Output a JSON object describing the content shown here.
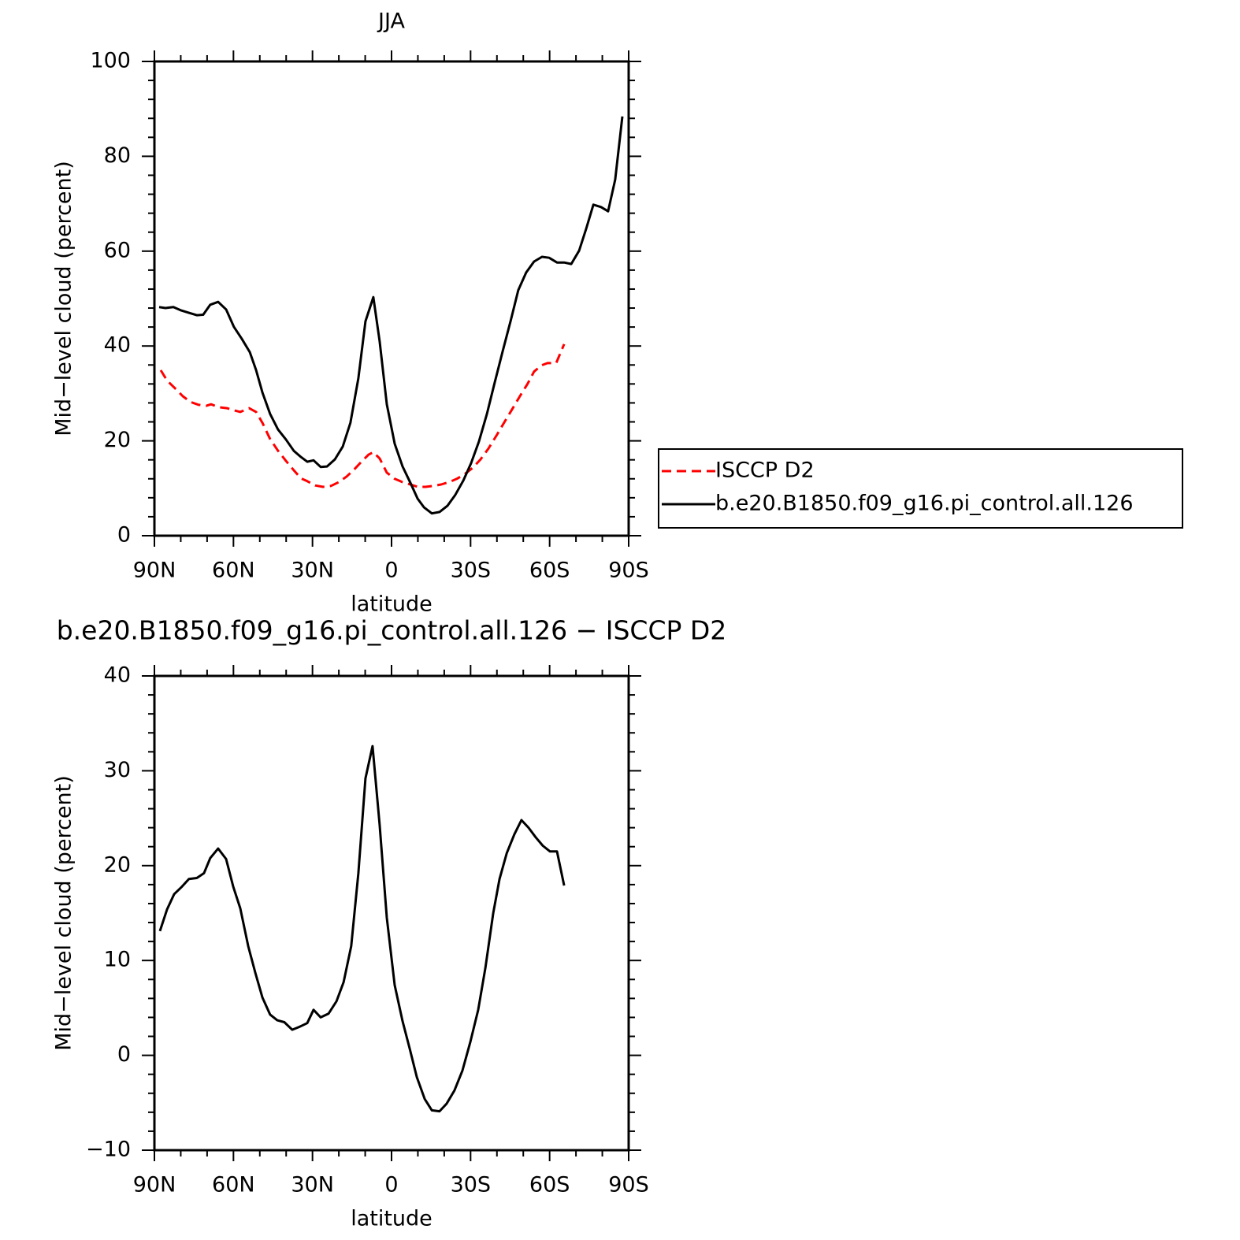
{
  "chart_data": [
    {
      "type": "line",
      "title": "JJA",
      "xlabel": "latitude",
      "ylabel": "Mid−level cloud (percent)",
      "xlim": [
        90,
        -90
      ],
      "ylim": [
        0,
        100
      ],
      "xticks": [
        {
          "value": 90,
          "label": "90N"
        },
        {
          "value": 60,
          "label": "60N"
        },
        {
          "value": 30,
          "label": "30N"
        },
        0,
        {
          "value": -30,
          "label": "30S"
        },
        {
          "value": -60,
          "label": "60S"
        },
        {
          "value": -90,
          "label": "90S"
        }
      ],
      "xminorticks": [
        80,
        70,
        50,
        40,
        20,
        10,
        -10,
        -20,
        -40,
        -50,
        -70,
        -80
      ],
      "yticks": [
        0,
        20,
        40,
        60,
        80,
        100
      ],
      "yminorticks": [
        4,
        8,
        12,
        16,
        24,
        28,
        32,
        36,
        44,
        48,
        52,
        56,
        64,
        68,
        72,
        76,
        84,
        88,
        92,
        96
      ],
      "legend": "right",
      "series": [
        {
          "name": "ISCCP D2",
          "color": "#ff0000",
          "dashed": true,
          "x": [
            87.6,
            85.2,
            82.2,
            79.2,
            76.3,
            73.3,
            70.3,
            68.5,
            65.5,
            62.5,
            59.5,
            57.4,
            54.1,
            51.4,
            49.0,
            46.1,
            43.1,
            40.1,
            37.1,
            34.4,
            32.0,
            29.0,
            26.0,
            23.0,
            20.0,
            17.0,
            14.1,
            11.1,
            8.7,
            6.9,
            4.5,
            1.8,
            -1.2,
            -4.2,
            -7.2,
            -9.9,
            -12.9,
            -15.8,
            -18.8,
            -21.8,
            -24.8,
            -27.8,
            -30.8,
            -33.8,
            -36.8,
            -39.8,
            -42.8,
            -45.8,
            -48.7,
            -51.7,
            -54.1,
            -56.8,
            -59.2,
            -62.5,
            -65.5
          ],
          "values": [
            34.9,
            32.7,
            31.1,
            29.4,
            28.2,
            27.6,
            27.4,
            27.7,
            27.1,
            26.9,
            26.4,
            26.1,
            26.9,
            26.1,
            23.8,
            20.4,
            17.9,
            15.8,
            13.8,
            12.1,
            11.5,
            10.6,
            10.3,
            10.5,
            11.3,
            12.5,
            14.0,
            15.8,
            17.1,
            17.6,
            16.3,
            13.3,
            12.0,
            11.3,
            10.8,
            10.3,
            10.3,
            10.5,
            10.8,
            11.3,
            12.0,
            13.0,
            14.3,
            16.1,
            18.4,
            21.1,
            23.9,
            26.7,
            29.4,
            32.1,
            34.6,
            35.9,
            36.4,
            36.4,
            40.4
          ]
        },
        {
          "name": "b.e20.B1850.f09_g16.pi_control.all.126",
          "color": "#000000",
          "dashed": false,
          "x": [
            88.2,
            85.8,
            82.8,
            79.8,
            76.9,
            73.9,
            71.5,
            68.8,
            65.8,
            62.8,
            59.8,
            56.8,
            53.8,
            51.4,
            49.0,
            46.1,
            43.1,
            40.1,
            37.1,
            34.4,
            32.0,
            29.6,
            26.9,
            24.5,
            21.5,
            18.5,
            15.6,
            12.6,
            9.9,
            6.9,
            4.5,
            1.8,
            -1.2,
            -4.2,
            -7.2,
            -9.9,
            -12.3,
            -15.3,
            -18.2,
            -21.2,
            -24.2,
            -27.2,
            -30.2,
            -33.2,
            -36.2,
            -39.2,
            -42.2,
            -45.2,
            -48.1,
            -51.1,
            -54.1,
            -57.1,
            -59.8,
            -62.8,
            -65.5,
            -68.2,
            -71.2,
            -73.9,
            -76.6,
            -79.5,
            -82.2,
            -84.9,
            -87.6
          ],
          "values": [
            48.2,
            48.0,
            48.2,
            47.5,
            47.0,
            46.5,
            46.6,
            48.7,
            49.3,
            47.7,
            44.0,
            41.5,
            38.7,
            34.9,
            30.2,
            25.7,
            22.4,
            20.3,
            17.9,
            16.6,
            15.6,
            15.9,
            14.5,
            14.6,
            16.1,
            18.8,
            23.8,
            33.2,
            45.2,
            50.3,
            41.0,
            27.7,
            19.4,
            14.6,
            11.1,
            7.8,
            6.0,
            4.7,
            5.0,
            6.3,
            8.6,
            11.6,
            15.3,
            19.9,
            25.7,
            32.4,
            38.9,
            45.3,
            51.8,
            55.5,
            57.8,
            58.8,
            58.6,
            57.6,
            57.6,
            57.3,
            60.1,
            64.8,
            69.8,
            69.3,
            68.4,
            75.1,
            88.4
          ]
        }
      ]
    },
    {
      "type": "line",
      "title": "b.e20.B1850.f09_g16.pi_control.all.126 − ISCCP D2",
      "xlabel": "latitude",
      "ylabel": "Mid−level cloud (percent)",
      "xlim": [
        90,
        -90
      ],
      "ylim": [
        -10,
        40
      ],
      "xticks": [
        {
          "value": 90,
          "label": "90N"
        },
        {
          "value": 60,
          "label": "60N"
        },
        {
          "value": 30,
          "label": "30N"
        },
        0,
        {
          "value": -30,
          "label": "30S"
        },
        {
          "value": -60,
          "label": "60S"
        },
        {
          "value": -90,
          "label": "90S"
        }
      ],
      "xminorticks": [
        80,
        70,
        50,
        40,
        20,
        10,
        -10,
        -20,
        -40,
        -50,
        -70,
        -80
      ],
      "yticks": [
        {
          "value": -10,
          "label": "−10"
        },
        0,
        10,
        20,
        30,
        40
      ],
      "yminorticks": [
        -8,
        -6,
        -4,
        -2,
        2,
        4,
        6,
        8,
        12,
        14,
        16,
        18,
        22,
        24,
        26,
        28,
        32,
        34,
        36,
        38
      ],
      "series": [
        {
          "color": "#000000",
          "dashed": false,
          "x": [
            87.9,
            85.2,
            82.5,
            79.5,
            76.9,
            73.9,
            71.2,
            68.8,
            65.8,
            62.8,
            60.1,
            57.4,
            54.4,
            51.7,
            49.0,
            46.1,
            43.4,
            40.7,
            37.7,
            35.0,
            32.0,
            29.6,
            26.9,
            23.9,
            20.9,
            18.2,
            15.3,
            12.6,
            9.9,
            7.2,
            4.5,
            1.8,
            -1.2,
            -4.2,
            -6.9,
            -9.6,
            -12.6,
            -15.3,
            -18.2,
            -20.9,
            -23.9,
            -26.9,
            -29.9,
            -32.9,
            -35.6,
            -38.6,
            -41.0,
            -43.7,
            -46.6,
            -49.3,
            -52.0,
            -54.7,
            -57.4,
            -60.1,
            -62.8,
            -65.5
          ],
          "values": [
            13.1,
            15.4,
            17.0,
            17.8,
            18.6,
            18.7,
            19.2,
            20.8,
            21.8,
            20.7,
            17.8,
            15.5,
            11.5,
            8.7,
            6.1,
            4.3,
            3.7,
            3.5,
            2.7,
            3.0,
            3.4,
            4.8,
            4.0,
            4.4,
            5.7,
            7.7,
            11.5,
            19.2,
            29.2,
            32.6,
            24.3,
            14.5,
            7.4,
            3.6,
            0.7,
            -2.3,
            -4.6,
            -5.8,
            -5.9,
            -5.1,
            -3.7,
            -1.6,
            1.4,
            4.8,
            9.2,
            15.0,
            18.6,
            21.3,
            23.3,
            24.8,
            24.0,
            23.0,
            22.1,
            21.5,
            21.5,
            17.9
          ]
        }
      ]
    }
  ]
}
